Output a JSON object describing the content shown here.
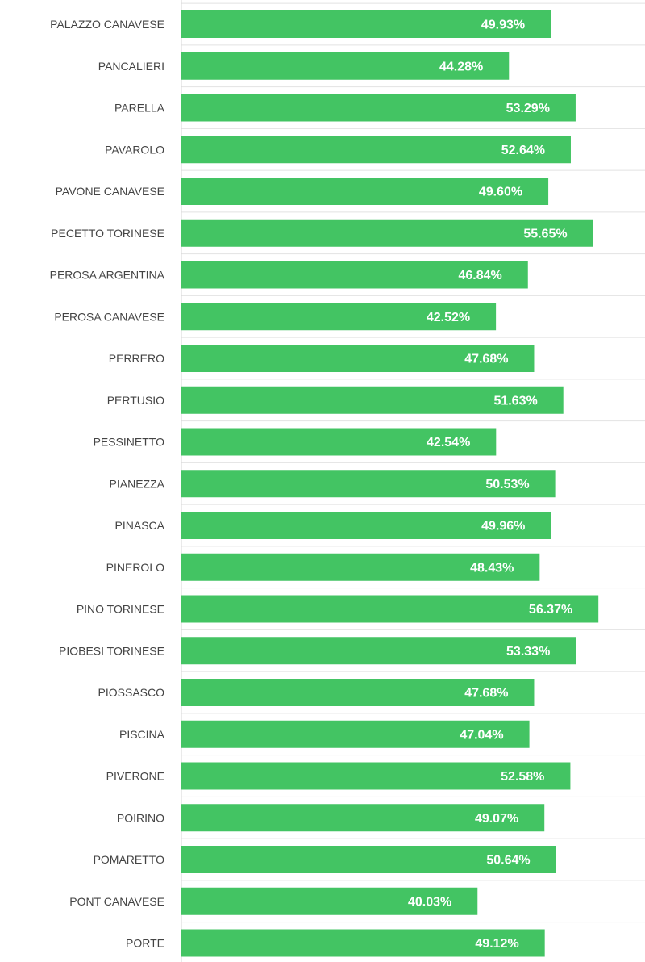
{
  "chart_data": {
    "type": "bar",
    "orientation": "horizontal",
    "categories": [
      "PALAZZO CANAVESE",
      "PANCALIERI",
      "PARELLA",
      "PAVAROLO",
      "PAVONE CANAVESE",
      "PECETTO TORINESE",
      "PEROSA ARGENTINA",
      "PEROSA CANAVESE",
      "PERRERO",
      "PERTUSIO",
      "PESSINETTO",
      "PIANEZZA",
      "PINASCA",
      "PINEROLO",
      "PINO TORINESE",
      "PIOBESI TORINESE",
      "PIOSSASCO",
      "PISCINA",
      "PIVERONE",
      "POIRINO",
      "POMARETTO",
      "PONT CANAVESE",
      "PORTE"
    ],
    "values": [
      49.93,
      44.28,
      53.29,
      52.64,
      49.6,
      55.65,
      46.84,
      42.52,
      47.68,
      51.63,
      42.54,
      50.53,
      49.96,
      48.43,
      56.37,
      53.33,
      47.68,
      47.04,
      52.58,
      49.07,
      50.64,
      40.03,
      49.12
    ],
    "value_labels": [
      "49.93%",
      "44.28%",
      "53.29%",
      "52.64%",
      "49.60%",
      "55.65%",
      "46.84%",
      "42.52%",
      "47.68%",
      "51.63%",
      "42.54%",
      "50.53%",
      "49.96%",
      "48.43%",
      "56.37%",
      "53.33%",
      "47.68%",
      "47.04%",
      "52.58%",
      "49.07%",
      "50.64%",
      "40.03%",
      "49.12%"
    ],
    "unit": "%",
    "xlim": [
      0,
      70
    ],
    "title": "",
    "xlabel": "",
    "ylabel": "",
    "grid": false,
    "legend": false,
    "bar_color": "#43c463",
    "value_label_color": "#ffffff",
    "category_label_color": "#444444"
  }
}
